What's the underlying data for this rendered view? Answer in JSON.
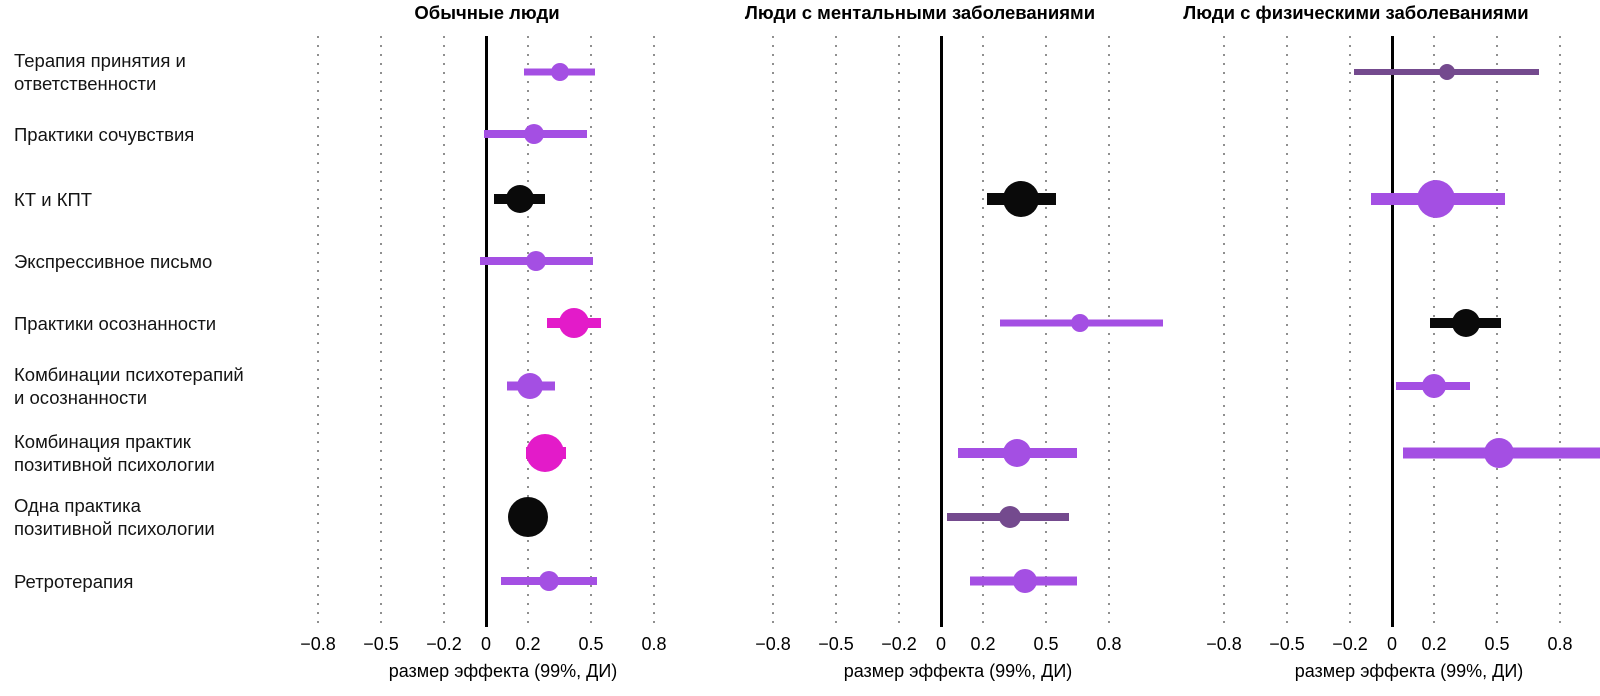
{
  "figure": {
    "kind": "forest-plot",
    "language": "ru"
  },
  "colors": {
    "purple": "#a44fe3",
    "magenta": "#e31bc9",
    "black": "#0a0a0a",
    "darkpurple": "#744a8e",
    "grid": "#8f8f8f",
    "zero_line": "#000000",
    "text": "#141414",
    "background": "#ffffff"
  },
  "chart_data": {
    "type": "scatter",
    "subtype": "forest-dot-ci",
    "xlabel": "размер эффекта (99%, ДИ)",
    "xlim": [
      -0.9,
      1.06
    ],
    "grid": "dotted-vertical",
    "xticks": [
      {
        "v": -0.8,
        "label": "−0.8"
      },
      {
        "v": -0.5,
        "label": "−0.5"
      },
      {
        "v": -0.2,
        "label": "−0.2"
      },
      {
        "v": 0,
        "label": "0"
      },
      {
        "v": 0.2,
        "label": "0.2"
      },
      {
        "v": 0.5,
        "label": "0.5"
      },
      {
        "v": 0.8,
        "label": "0.8"
      }
    ],
    "categories": [
      {
        "label": "Терапия принятия и ответственности",
        "lines": [
          "Терапия принятия и",
          "ответственности"
        ]
      },
      {
        "label": "Практики сочувствия",
        "lines": [
          "Практики сочувствия"
        ]
      },
      {
        "label": "КТ и КПТ",
        "lines": [
          "КТ и КПТ"
        ]
      },
      {
        "label": "Экспрессивное письмо",
        "lines": [
          "Экспрессивное письмо"
        ]
      },
      {
        "label": "Практики осознанности",
        "lines": [
          "Практики осознанности"
        ]
      },
      {
        "label": "Комбинации психотерапий и осознанности",
        "lines": [
          "Комбинации психотерапий",
          "и осознанности"
        ]
      },
      {
        "label": "Комбинация практик позитивной психологии",
        "lines": [
          "Комбинация практик",
          "позитивной психологии"
        ]
      },
      {
        "label": "Одна практика позитивной психологии",
        "lines": [
          "Одна практика",
          "позитивной психологии"
        ]
      },
      {
        "label": "Ретротерапия",
        "lines": [
          "Ретротерапия"
        ]
      }
    ],
    "panels": [
      {
        "title": "Обычные люди",
        "points": [
          {
            "category": "Терапия принятия и ответственности",
            "row": 0,
            "value": 0.35,
            "ci": [
              0.18,
              0.52
            ],
            "color": "purple",
            "size": 18,
            "line": 7
          },
          {
            "category": "Практики сочувствия",
            "row": 1,
            "value": 0.23,
            "ci": [
              -0.01,
              0.48
            ],
            "color": "purple",
            "size": 20,
            "line": 8
          },
          {
            "category": "КТ и КПТ",
            "row": 2,
            "value": 0.16,
            "ci": [
              0.04,
              0.28
            ],
            "color": "black",
            "size": 28,
            "line": 10
          },
          {
            "category": "Экспрессивное письмо",
            "row": 3,
            "value": 0.24,
            "ci": [
              -0.03,
              0.51
            ],
            "color": "purple",
            "size": 20,
            "line": 8
          },
          {
            "category": "Практики осознанности",
            "row": 4,
            "value": 0.42,
            "ci": [
              0.29,
              0.55
            ],
            "color": "magenta",
            "size": 30,
            "line": 10
          },
          {
            "category": "Комбинации психотерапий и осознанности",
            "row": 5,
            "value": 0.21,
            "ci": [
              0.1,
              0.33
            ],
            "color": "purple",
            "size": 26,
            "line": 9
          },
          {
            "category": "Комбинация практик позитивной психологии",
            "row": 6,
            "value": 0.28,
            "ci": [
              0.19,
              0.38
            ],
            "color": "magenta",
            "size": 38,
            "line": 12
          },
          {
            "category": "Одна практика позитивной психологии",
            "row": 7,
            "value": 0.2,
            "ci": [
              0.13,
              0.27
            ],
            "color": "black",
            "size": 40,
            "line": 10
          },
          {
            "category": "Ретротерапия",
            "row": 8,
            "value": 0.3,
            "ci": [
              0.07,
              0.53
            ],
            "color": "purple",
            "size": 20,
            "line": 8
          }
        ]
      },
      {
        "title": "Люди с ментальными заболеваниями",
        "points": [
          {
            "category": "КТ и КПТ",
            "row": 2,
            "value": 0.38,
            "ci": [
              0.22,
              0.55
            ],
            "color": "black",
            "size": 36,
            "line": 12
          },
          {
            "category": "Практики осознанности",
            "row": 4,
            "value": 0.66,
            "ci": [
              0.28,
              1.06
            ],
            "color": "purple",
            "size": 18,
            "line": 7
          },
          {
            "category": "Комбинация практик позитивной психологии",
            "row": 6,
            "value": 0.36,
            "ci": [
              0.08,
              0.65
            ],
            "color": "purple",
            "size": 28,
            "line": 10
          },
          {
            "category": "Одна практика позитивной психологии",
            "row": 7,
            "value": 0.33,
            "ci": [
              0.03,
              0.61
            ],
            "color": "darkpurple",
            "size": 22,
            "line": 8
          },
          {
            "category": "Ретротерапия",
            "row": 8,
            "value": 0.4,
            "ci": [
              0.14,
              0.65
            ],
            "color": "purple",
            "size": 24,
            "line": 9
          }
        ]
      },
      {
        "title": "Люди с физическими заболеваниями",
        "points": [
          {
            "category": "Терапия принятия и ответственности",
            "row": 0,
            "value": 0.26,
            "ci": [
              -0.18,
              0.7
            ],
            "color": "darkpurple",
            "size": 16,
            "line": 6
          },
          {
            "category": "КТ и КПТ",
            "row": 2,
            "value": 0.21,
            "ci": [
              -0.1,
              0.54
            ],
            "color": "purple",
            "size": 38,
            "line": 12
          },
          {
            "category": "Практики осознанности",
            "row": 4,
            "value": 0.35,
            "ci": [
              0.18,
              0.52
            ],
            "color": "black",
            "size": 28,
            "line": 10
          },
          {
            "category": "Комбинации психотерапий и осознанности",
            "row": 5,
            "value": 0.2,
            "ci": [
              0.02,
              0.37
            ],
            "color": "purple",
            "size": 24,
            "line": 8
          },
          {
            "category": "Комбинация практик позитивной психологии",
            "row": 6,
            "value": 0.51,
            "ci": [
              0.05,
              1.06
            ],
            "color": "purple",
            "size": 30,
            "line": 11
          }
        ]
      }
    ]
  }
}
